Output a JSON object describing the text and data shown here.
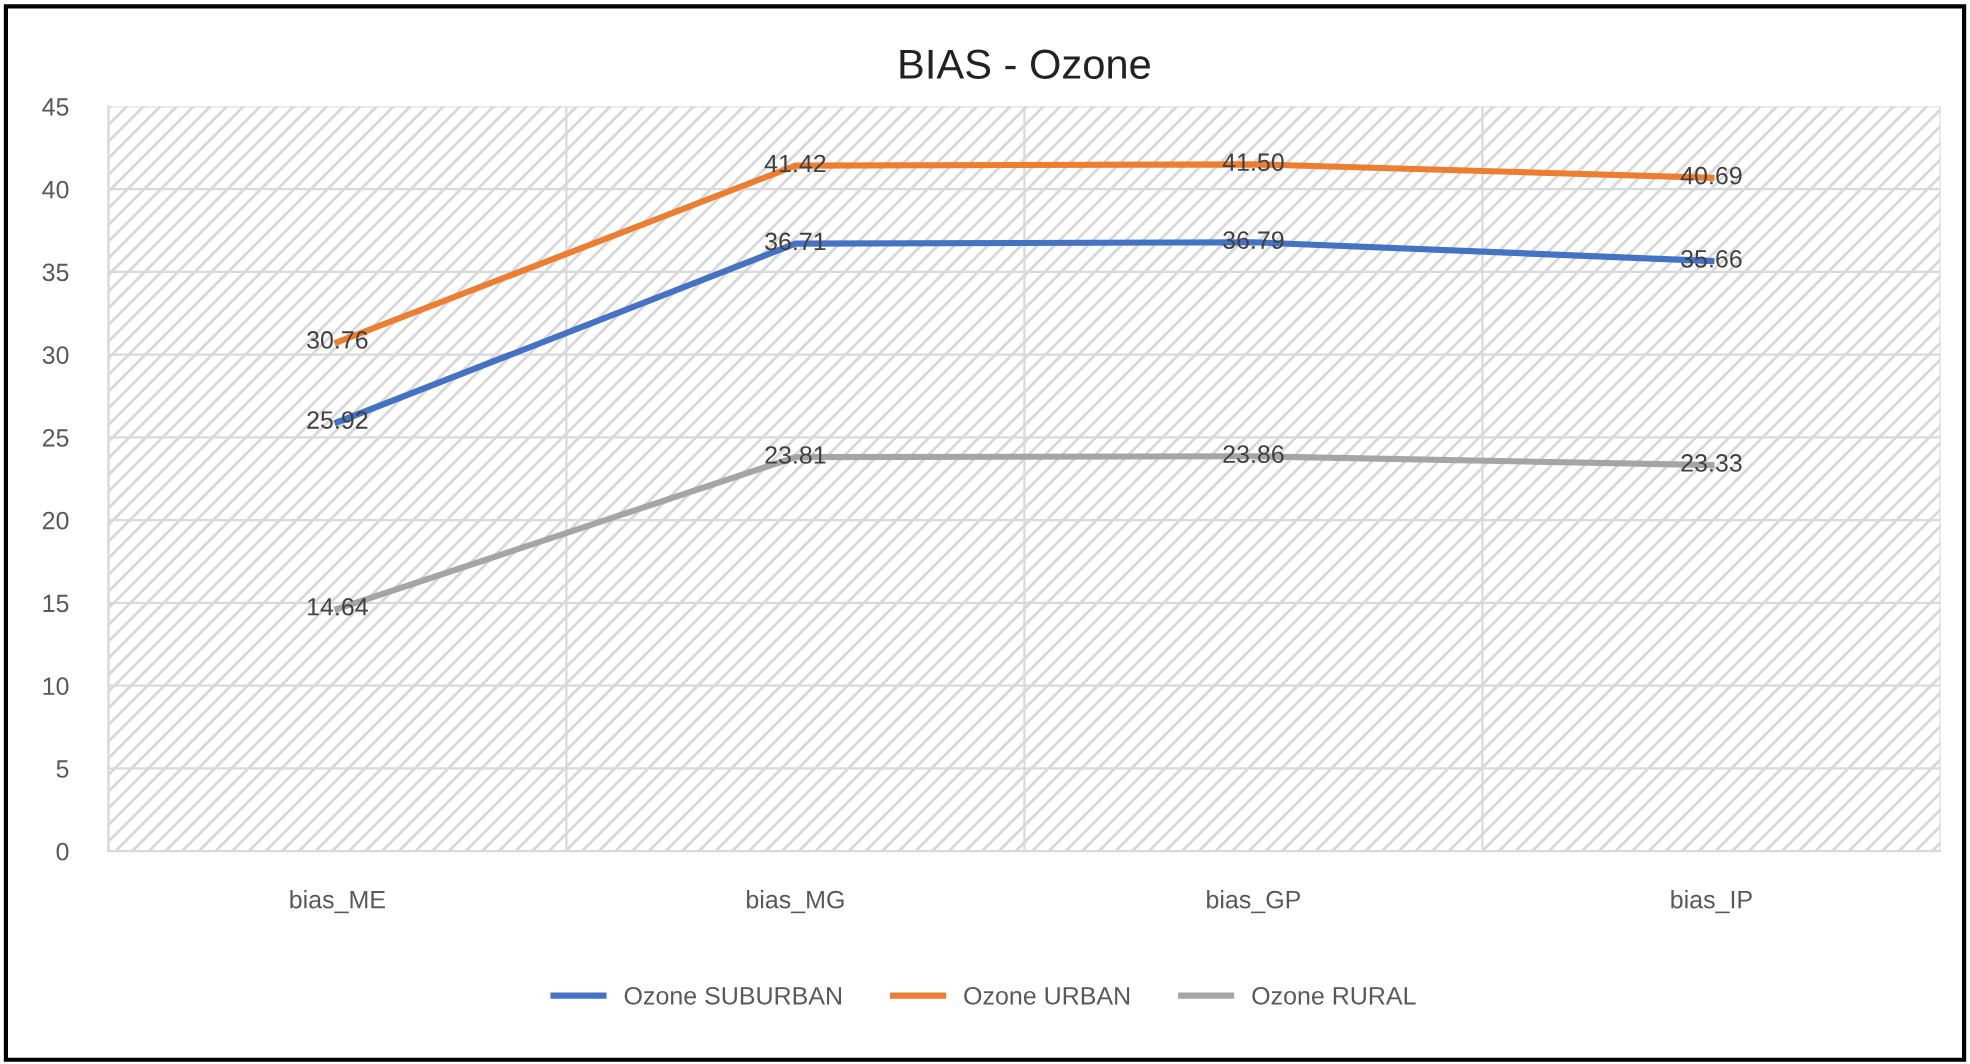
{
  "chart_data": {
    "type": "line",
    "title": "BIAS - Ozone",
    "categories": [
      "bias_ME",
      "bias_MG",
      "bias_GP",
      "bias_IP"
    ],
    "series": [
      {
        "name": "Ozone SUBURBAN",
        "color": "#4472c4",
        "values": [
          25.92,
          36.71,
          36.79,
          35.66
        ],
        "value_labels": [
          "25.92",
          "36.71",
          "36.79",
          "35.66"
        ]
      },
      {
        "name": "Ozone URBAN",
        "color": "#ed7d31",
        "values": [
          30.76,
          41.42,
          41.5,
          40.69
        ],
        "value_labels": [
          "30.76",
          "41.42",
          "41.50",
          "40.69"
        ]
      },
      {
        "name": "Ozone RURAL",
        "color": "#a5a5a5",
        "values": [
          14.64,
          23.81,
          23.86,
          23.33
        ],
        "value_labels": [
          "14.64",
          "23.81",
          "23.86",
          "23.33"
        ]
      }
    ],
    "ylim": [
      0,
      45
    ],
    "yticks": [
      0,
      5,
      10,
      15,
      20,
      25,
      30,
      35,
      40,
      45
    ],
    "grid": true,
    "legend": "bottom",
    "marker": "none",
    "line_style": "solid"
  }
}
